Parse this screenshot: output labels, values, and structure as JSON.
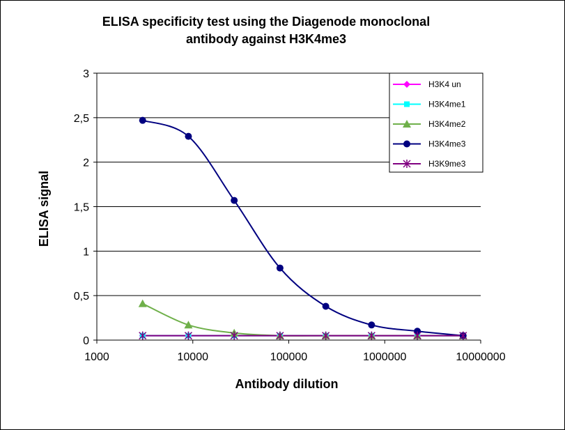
{
  "chart_data": {
    "type": "line",
    "title_lines": [
      "ELISA specificity test using the Diagenode monoclonal",
      "antibody against H3K4me3"
    ],
    "xlabel": "Antibody dilution",
    "ylabel": "ELISA signal",
    "x_scale": "log",
    "xlim": [
      1000,
      10000000
    ],
    "ylim": [
      0,
      3
    ],
    "x_ticks": [
      1000,
      10000,
      100000,
      1000000,
      10000000
    ],
    "x_tick_labels": [
      "1000",
      "10000",
      "100000",
      "1000000",
      "10000000"
    ],
    "y_ticks": [
      0,
      0.5,
      1,
      1.5,
      2,
      2.5,
      3
    ],
    "y_tick_labels": [
      "0",
      "0,5",
      "1",
      "1,5",
      "2",
      "2,5",
      "3"
    ],
    "grid": "horizontal",
    "legend_position": "top-right",
    "x": [
      3000,
      9000,
      27000,
      81000,
      243000,
      729000,
      2187000,
      6561000
    ],
    "series": [
      {
        "name": "H3K4 un",
        "color": "#ff00ff",
        "marker": "diamond",
        "values": [
          0.05,
          0.05,
          0.05,
          0.05,
          0.05,
          0.05,
          0.05,
          0.05
        ]
      },
      {
        "name": "H3K4me1",
        "color": "#00ffff",
        "marker": "square",
        "values": [
          0.05,
          0.05,
          0.05,
          0.05,
          0.05,
          0.05,
          0.05,
          0.05
        ]
      },
      {
        "name": "H3K4me2",
        "color": "#6fb04a",
        "marker": "triangle",
        "values": [
          0.41,
          0.17,
          0.08,
          0.05,
          0.05,
          0.05,
          0.05,
          0.05
        ]
      },
      {
        "name": "H3K4me3",
        "color": "#000080",
        "marker": "circle",
        "values": [
          2.47,
          2.29,
          1.57,
          0.81,
          0.38,
          0.17,
          0.1,
          0.05
        ]
      },
      {
        "name": "H3K9me3",
        "color": "#800080",
        "marker": "star",
        "values": [
          0.05,
          0.05,
          0.05,
          0.05,
          0.05,
          0.05,
          0.05,
          0.05
        ]
      }
    ]
  }
}
